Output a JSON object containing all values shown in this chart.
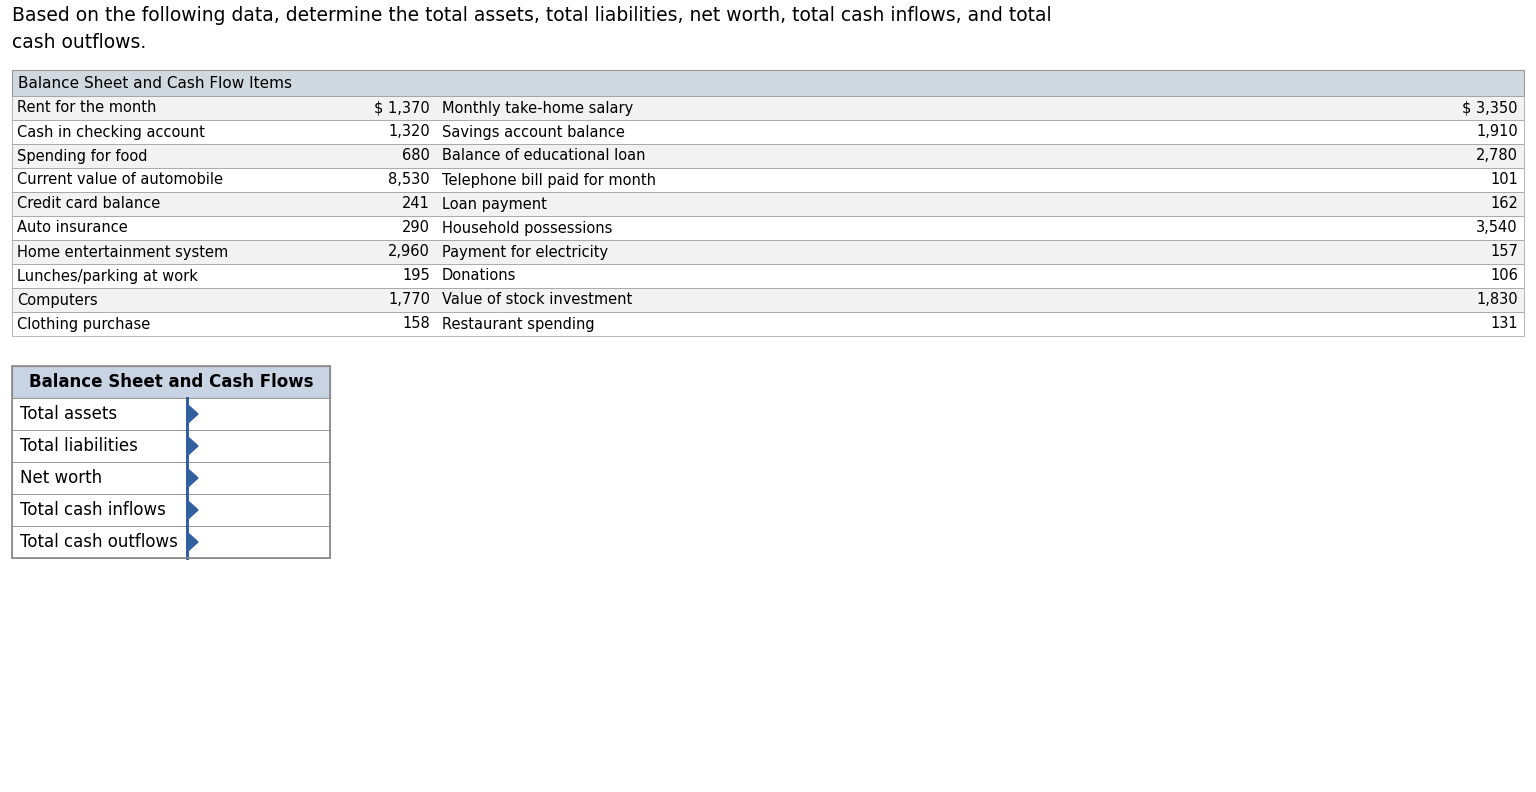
{
  "title_text": "Based on the following data, determine the total assets, total liabilities, net worth, total cash inflows, and total\ncash outflows.",
  "header": "Balance Sheet and Cash Flow Items",
  "header_bg": "#d0d8e0",
  "row_bg_odd": "#f2f2f2",
  "row_bg_even": "#ffffff",
  "left_items": [
    "Rent for the month",
    "Cash in checking account",
    "Spending for food",
    "Current value of automobile",
    "Credit card balance",
    "Auto insurance",
    "Home entertainment system",
    "Lunches/parking at work",
    "Computers",
    "Clothing purchase"
  ],
  "left_values": [
    "$ 1,370",
    "1,320",
    "680",
    "8,530",
    "241",
    "290",
    "2,960",
    "195",
    "1,770",
    "158"
  ],
  "right_items": [
    "Monthly take-home salary",
    "Savings account balance",
    "Balance of educational loan",
    "Telephone bill paid for month",
    "Loan payment",
    "Household possessions",
    "Payment for electricity",
    "Donations",
    "Value of stock investment",
    "Restaurant spending"
  ],
  "right_values": [
    "$ 3,350",
    "1,910",
    "2,780",
    "101",
    "162",
    "3,540",
    "157",
    "106",
    "1,830",
    "131"
  ],
  "summary_header": "Balance Sheet and Cash Flows",
  "summary_header_bg": "#c8d4e4",
  "summary_rows": [
    "Total assets",
    "Total liabilities",
    "Net worth",
    "Total cash inflows",
    "Total cash outflows"
  ],
  "arrow_color": "#3060a0",
  "border_color": "#999999",
  "font_color": "#000000",
  "title_fontsize": 13.5,
  "header_fontsize": 11,
  "data_fontsize": 10.5,
  "summary_label_fontsize": 12,
  "summary_header_fontsize": 12
}
